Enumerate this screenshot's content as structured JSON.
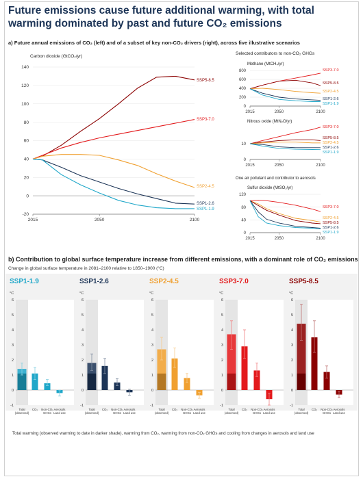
{
  "title": "Future emissions cause future additional warming, with total warming dominated by past and future CO₂ emissions",
  "panel_a": {
    "heading": "a) Future annual emissions of CO₂ (left) and of a subset of key non-CO₂ drivers (right), across five illustrative scenarios",
    "right_header_ghg": "Selected contributors to non-CO₂ GHGs",
    "right_header_aerosol": "One air pollutant and contributor to aerosols"
  },
  "panel_b": {
    "heading": "b) Contribution to global surface temperature increase from different emissions, with a dominant role of CO₂ emissions",
    "description": "Change in global surface temperature in 2081–2100 relative to 1850–1900 (°C)",
    "unit": "°C",
    "bar_labels": [
      "Total (observed)",
      "CO₂",
      "Non-CO₂ GHGs",
      "Aerosols Land use"
    ],
    "footnote": "Total warming (observed warming to date in darker shade), warming from CO₂, warming from non-CO₂ GHGs and cooling from changes in aerosols and land use"
  },
  "scenario_colors": {
    "SSP1-1.9": "#1fa7c9",
    "SSP1-2.6": "#1d3557",
    "SSP2-4.5": "#f0a030",
    "SSP3-7.0": "#e31a1c",
    "SSP5-8.5": "#8b0000"
  },
  "chart_data": [
    {
      "type": "line",
      "title": "Carbon dioxide (GtCO₂/yr)",
      "x": [
        2015,
        2020,
        2030,
        2040,
        2050,
        2060,
        2070,
        2080,
        2090,
        2100
      ],
      "ylim": [
        -20,
        140
      ],
      "yticks": [
        -20,
        0,
        20,
        40,
        60,
        80,
        100,
        120,
        140
      ],
      "xticks": [
        2015,
        2050,
        2100
      ],
      "series": [
        {
          "name": "SSP5-8.5",
          "values": [
            40,
            43,
            55,
            70,
            84,
            100,
            117,
            129,
            130,
            126
          ]
        },
        {
          "name": "SSP3-7.0",
          "values": [
            40,
            44,
            52,
            58,
            63,
            67,
            71,
            75,
            79,
            83
          ]
        },
        {
          "name": "SSP2-4.5",
          "values": [
            40,
            43,
            45,
            45,
            44,
            39,
            33,
            24,
            16,
            9
          ]
        },
        {
          "name": "SSP1-2.6",
          "values": [
            40,
            39,
            31,
            22,
            15,
            8,
            2,
            -3,
            -8,
            -9
          ]
        },
        {
          "name": "SSP1-1.9",
          "values": [
            40,
            39,
            23,
            12,
            3,
            -5,
            -10,
            -13,
            -14,
            -14
          ]
        }
      ]
    },
    {
      "type": "line",
      "title": "Methane (MtCH₄/yr)",
      "x": [
        2015,
        2030,
        2050,
        2070,
        2090,
        2100
      ],
      "ylim": [
        0,
        800
      ],
      "yticks": [
        0,
        200,
        400,
        600,
        800
      ],
      "xticks": [
        2015,
        2050,
        2100
      ],
      "series": [
        {
          "name": "SSP3-7.0",
          "values": [
            390,
            470,
            560,
            630,
            700,
            740
          ]
        },
        {
          "name": "SSP5-8.5",
          "values": [
            390,
            470,
            560,
            580,
            520,
            460
          ]
        },
        {
          "name": "SSP2-4.5",
          "values": [
            390,
            400,
            370,
            330,
            300,
            290
          ]
        },
        {
          "name": "SSP1-2.6",
          "values": [
            390,
            290,
            200,
            160,
            140,
            130
          ]
        },
        {
          "name": "SSP1-1.9",
          "values": [
            390,
            250,
            150,
            120,
            100,
            100
          ]
        }
      ]
    },
    {
      "type": "line",
      "title": "Nitrous oxide (MtN₂O/yr)",
      "x": [
        2015,
        2030,
        2050,
        2070,
        2090,
        2100
      ],
      "ylim": [
        0,
        20
      ],
      "yticks": [
        0,
        10
      ],
      "xticks": [
        2015,
        2050,
        2100
      ],
      "series": [
        {
          "name": "SSP3-7.0",
          "values": [
            10,
            12,
            14.5,
            17,
            19,
            20.5
          ]
        },
        {
          "name": "SSP5-8.5",
          "values": [
            10,
            11,
            12,
            12.5,
            12.5,
            12
          ]
        },
        {
          "name": "SSP2-4.5",
          "values": [
            10,
            10.5,
            11,
            11,
            10.5,
            10.5
          ]
        },
        {
          "name": "SSP1-2.6",
          "values": [
            10,
            9.5,
            8,
            7.5,
            7.5,
            7.5
          ]
        },
        {
          "name": "SSP1-1.9",
          "values": [
            10,
            8.5,
            7,
            6.5,
            6.3,
            6.2
          ]
        }
      ]
    },
    {
      "type": "line",
      "title": "Sulfur dioxide (MtSO₂/yr)",
      "x": [
        2015,
        2025,
        2035,
        2050,
        2070,
        2090,
        2100
      ],
      "ylim": [
        0,
        120
      ],
      "yticks": [
        0,
        40,
        80,
        120
      ],
      "xticks": [
        2015,
        2050,
        2100
      ],
      "series": [
        {
          "name": "SSP3-7.0",
          "values": [
            100,
            102,
            100,
            95,
            86,
            74,
            66
          ]
        },
        {
          "name": "SSP2-4.5",
          "values": [
            100,
            90,
            75,
            60,
            45,
            38,
            33
          ]
        },
        {
          "name": "SSP5-8.5",
          "values": [
            100,
            85,
            70,
            55,
            38,
            30,
            28
          ]
        },
        {
          "name": "SSP1-2.6",
          "values": [
            100,
            65,
            42,
            30,
            20,
            16,
            14
          ]
        },
        {
          "name": "SSP1-1.9",
          "values": [
            100,
            50,
            30,
            22,
            16,
            14,
            12
          ]
        }
      ]
    },
    {
      "type": "bar",
      "title": "SSP1-1.9",
      "categories": [
        "Total (observed)",
        "CO₂",
        "Non-CO₂ GHGs",
        "Aerosols Land use"
      ],
      "values": [
        1.4,
        1.1,
        0.45,
        -0.2
      ],
      "observed": 1.1,
      "error_low": [
        1.0,
        0.7,
        0.3,
        -0.4
      ],
      "error_high": [
        1.8,
        1.5,
        0.7,
        0.0
      ],
      "ylim": [
        -1,
        6
      ],
      "yticks": [
        -1,
        0,
        1,
        2,
        3,
        4,
        5,
        6
      ]
    },
    {
      "type": "bar",
      "title": "SSP1-2.6",
      "categories": [
        "Total (observed)",
        "CO₂",
        "Non-CO₂ GHGs",
        "Aerosols Land use"
      ],
      "values": [
        1.8,
        1.6,
        0.5,
        -0.15
      ],
      "observed": 1.1,
      "error_low": [
        1.3,
        1.1,
        0.3,
        -0.35
      ],
      "error_high": [
        2.4,
        2.1,
        0.75,
        0.05
      ],
      "ylim": [
        -1,
        6
      ],
      "yticks": [
        -1,
        0,
        1,
        2,
        3,
        4,
        5,
        6
      ]
    },
    {
      "type": "bar",
      "title": "SSP2-4.5",
      "categories": [
        "Total (observed)",
        "CO₂",
        "Non-CO₂ GHGs",
        "Aerosols Land use"
      ],
      "values": [
        2.7,
        2.1,
        0.8,
        -0.35
      ],
      "observed": 1.1,
      "error_low": [
        2.0,
        1.5,
        0.5,
        -0.55
      ],
      "error_high": [
        3.5,
        2.8,
        1.1,
        -0.15
      ],
      "ylim": [
        -1,
        6
      ],
      "yticks": [
        -1,
        0,
        1,
        2,
        3,
        4,
        5,
        6
      ]
    },
    {
      "type": "bar",
      "title": "SSP3-7.0",
      "categories": [
        "Total (observed)",
        "CO₂",
        "Non-CO₂ GHGs",
        "Aerosols Land use"
      ],
      "values": [
        3.7,
        2.9,
        1.3,
        -0.6
      ],
      "observed": 1.1,
      "error_low": [
        2.7,
        2.1,
        0.9,
        -1.0
      ],
      "error_high": [
        4.6,
        4.0,
        1.8,
        -0.2
      ],
      "ylim": [
        -1,
        6
      ],
      "yticks": [
        -1,
        0,
        1,
        2,
        3,
        4,
        5,
        6
      ]
    },
    {
      "type": "bar",
      "title": "SSP5-8.5",
      "categories": [
        "Total (observed)",
        "CO₂",
        "Non-CO₂ GHGs",
        "Aerosols Land use"
      ],
      "values": [
        4.4,
        3.5,
        1.2,
        -0.3
      ],
      "observed": 1.1,
      "error_low": [
        3.3,
        2.5,
        0.8,
        -0.5
      ],
      "error_high": [
        5.7,
        4.6,
        1.6,
        -0.1
      ],
      "ylim": [
        -1,
        6
      ],
      "yticks": [
        -1,
        0,
        1,
        2,
        3,
        4,
        5,
        6
      ]
    }
  ]
}
